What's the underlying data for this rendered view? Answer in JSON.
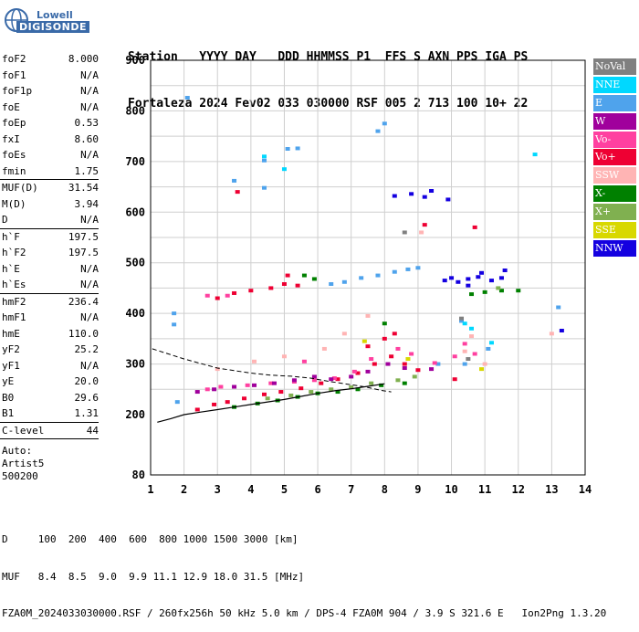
{
  "logo": {
    "line1": "Lowell",
    "line2": "DIGISONDE"
  },
  "header": {
    "line1": "Station   YYYY DAY   DDD HHMMSS P1  FFS S AXN PPS IGA PS",
    "line2": "Fortaleza 2024 Fev02 033 030000 RSF 005 2 713 100 10+ 22"
  },
  "params_groups": [
    [
      {
        "k": "foF2",
        "v": "8.000"
      },
      {
        "k": "foF1",
        "v": "N/A"
      },
      {
        "k": "foF1p",
        "v": "N/A"
      },
      {
        "k": "foE",
        "v": "N/A"
      },
      {
        "k": "foEp",
        "v": "0.53"
      },
      {
        "k": "fxI",
        "v": "8.60"
      },
      {
        "k": "foEs",
        "v": "N/A"
      },
      {
        "k": "fmin",
        "v": "1.75"
      }
    ],
    [
      {
        "k": "MUF(D)",
        "v": "31.54"
      },
      {
        "k": "M(D)",
        "v": "3.94"
      },
      {
        "k": "D",
        "v": "N/A"
      }
    ],
    [
      {
        "k": "h`F",
        "v": "197.5"
      },
      {
        "k": "h`F2",
        "v": "197.5"
      },
      {
        "k": "h`E",
        "v": "N/A"
      },
      {
        "k": "h`Es",
        "v": "N/A"
      }
    ],
    [
      {
        "k": "hmF2",
        "v": "236.4"
      },
      {
        "k": "hmF1",
        "v": "N/A"
      },
      {
        "k": "hmE",
        "v": "110.0"
      },
      {
        "k": "yF2",
        "v": "25.2"
      },
      {
        "k": "yF1",
        "v": "N/A"
      },
      {
        "k": "yE",
        "v": "20.0"
      },
      {
        "k": "B0",
        "v": "29.6"
      },
      {
        "k": "B1",
        "v": "1.31"
      }
    ],
    [
      {
        "k": "C-level",
        "v": "44"
      }
    ]
  ],
  "auto": [
    "Auto:",
    "Artist5",
    "500200"
  ],
  "legend": [
    {
      "label": "NoVal",
      "bg": "#808080",
      "fg": "#ffffff"
    },
    {
      "label": "NNE",
      "bg": "#00d8ff",
      "fg": "#ffffff"
    },
    {
      "label": "E",
      "bg": "#4fa3ec",
      "fg": "#ffffff"
    },
    {
      "label": "W",
      "bg": "#a0009c",
      "fg": "#ffffff"
    },
    {
      "label": "Vo-",
      "bg": "#ff40a0",
      "fg": "#ffffff"
    },
    {
      "label": "Vo+",
      "bg": "#ee0033",
      "fg": "#ffffff"
    },
    {
      "label": "SSW",
      "bg": "#ffb4b4",
      "fg": "#ffffff"
    },
    {
      "label": "X-",
      "bg": "#008000",
      "fg": "#ffffff"
    },
    {
      "label": "X+",
      "bg": "#80b050",
      "fg": "#ffffff"
    },
    {
      "label": "SSE",
      "bg": "#d8d800",
      "fg": "#ffffff"
    },
    {
      "label": "NNW",
      "bg": "#1400e0",
      "fg": "#ffffff"
    }
  ],
  "footer": {
    "line1": "D     100  200  400  600  800 1000 1500 3000 [km]",
    "line2": "MUF   8.4  8.5  9.0  9.9 11.1 12.9 18.0 31.5 [MHz]",
    "line3": "FZA0M_2024033030000.RSF / 260fx256h 50 kHz 5.0 km / DPS-4 FZA0M 904 / 3.9 S 321.6 E   Ion2Png 1.3.20"
  },
  "chart_data": {
    "type": "scatter",
    "x_ticks": [
      "1",
      "2",
      "3",
      "4",
      "5",
      "6",
      "7",
      "8",
      "9",
      "10",
      "11",
      "12",
      "13",
      "14"
    ],
    "y_ticks": [
      "80",
      "200",
      "300",
      "400",
      "500",
      "600",
      "700",
      "800",
      "900"
    ],
    "xlim": [
      1,
      14
    ],
    "ylim": [
      80,
      900
    ],
    "grid": true,
    "legend_placement": "right",
    "series": [
      {
        "name": "E",
        "points": [
          [
            6.8,
            462
          ],
          [
            7.3,
            470
          ],
          [
            7.8,
            475
          ],
          [
            8.3,
            482
          ],
          [
            8.7,
            487
          ],
          [
            9.0,
            490
          ],
          [
            6.4,
            458
          ],
          [
            1.8,
            225
          ],
          [
            2.1,
            826
          ],
          [
            1.7,
            400
          ],
          [
            1.7,
            378
          ],
          [
            13.2,
            412
          ],
          [
            7.8,
            760
          ],
          [
            8.0,
            775
          ],
          [
            5.1,
            725
          ],
          [
            5.4,
            726
          ],
          [
            3.5,
            662
          ],
          [
            4.4,
            648
          ],
          [
            4.4,
            702
          ],
          [
            10.3,
            385
          ],
          [
            10.4,
            300
          ],
          [
            9.6,
            300
          ],
          [
            11.1,
            330
          ]
        ]
      },
      {
        "name": "NNW",
        "points": [
          [
            9.8,
            465
          ],
          [
            10.0,
            470
          ],
          [
            10.2,
            462
          ],
          [
            10.5,
            468
          ],
          [
            10.8,
            472
          ],
          [
            11.2,
            465
          ],
          [
            11.5,
            470
          ],
          [
            8.3,
            632
          ],
          [
            8.8,
            636
          ],
          [
            9.2,
            630
          ],
          [
            9.9,
            625
          ],
          [
            9.4,
            642
          ],
          [
            10.5,
            455
          ],
          [
            10.9,
            480
          ],
          [
            11.6,
            485
          ],
          [
            13.3,
            366
          ]
        ]
      },
      {
        "name": "Vo+",
        "points": [
          [
            2.4,
            210
          ],
          [
            2.9,
            220
          ],
          [
            3.3,
            225
          ],
          [
            3.8,
            232
          ],
          [
            4.4,
            240
          ],
          [
            4.9,
            245
          ],
          [
            5.5,
            252
          ],
          [
            6.1,
            262
          ],
          [
            6.6,
            270
          ],
          [
            7.2,
            282
          ],
          [
            7.7,
            300
          ],
          [
            8.2,
            315
          ],
          [
            8.6,
            300
          ],
          [
            9.0,
            288
          ],
          [
            3.0,
            430
          ],
          [
            3.5,
            440
          ],
          [
            4.0,
            445
          ],
          [
            4.6,
            450
          ],
          [
            5.0,
            458
          ],
          [
            5.4,
            455
          ],
          [
            5.1,
            475
          ],
          [
            3.6,
            640
          ],
          [
            7.5,
            335
          ],
          [
            8.0,
            350
          ],
          [
            8.3,
            360
          ],
          [
            9.2,
            575
          ],
          [
            10.7,
            570
          ],
          [
            10.1,
            270
          ]
        ]
      },
      {
        "name": "Vo-",
        "points": [
          [
            2.7,
            250
          ],
          [
            3.1,
            255
          ],
          [
            3.9,
            258
          ],
          [
            4.6,
            262
          ],
          [
            5.3,
            265
          ],
          [
            5.9,
            268
          ],
          [
            6.5,
            272
          ],
          [
            7.1,
            285
          ],
          [
            7.6,
            310
          ],
          [
            8.4,
            330
          ],
          [
            8.8,
            320
          ],
          [
            9.5,
            302
          ],
          [
            10.1,
            315
          ],
          [
            10.4,
            340
          ],
          [
            10.7,
            320
          ],
          [
            2.7,
            435
          ],
          [
            3.3,
            435
          ],
          [
            5.6,
            305
          ]
        ]
      },
      {
        "name": "W",
        "points": [
          [
            2.4,
            245
          ],
          [
            2.9,
            250
          ],
          [
            3.5,
            255
          ],
          [
            4.1,
            258
          ],
          [
            4.7,
            262
          ],
          [
            5.3,
            268
          ],
          [
            5.9,
            275
          ],
          [
            6.4,
            270
          ],
          [
            7.0,
            275
          ],
          [
            7.5,
            285
          ],
          [
            8.1,
            300
          ],
          [
            8.6,
            292
          ],
          [
            9.4,
            290
          ]
        ]
      },
      {
        "name": "X-",
        "points": [
          [
            3.5,
            215
          ],
          [
            4.2,
            222
          ],
          [
            4.8,
            228
          ],
          [
            5.4,
            235
          ],
          [
            6.0,
            242
          ],
          [
            6.6,
            245
          ],
          [
            7.2,
            250
          ],
          [
            7.9,
            258
          ],
          [
            8.6,
            262
          ],
          [
            10.6,
            438
          ],
          [
            11.0,
            442
          ],
          [
            11.5,
            445
          ],
          [
            12.0,
            445
          ],
          [
            5.6,
            475
          ],
          [
            5.9,
            468
          ],
          [
            8.0,
            380
          ]
        ]
      },
      {
        "name": "X+",
        "points": [
          [
            4.5,
            232
          ],
          [
            5.2,
            238
          ],
          [
            5.8,
            245
          ],
          [
            6.4,
            250
          ],
          [
            7.0,
            254
          ],
          [
            7.6,
            262
          ],
          [
            8.4,
            268
          ],
          [
            8.9,
            275
          ],
          [
            11.4,
            450
          ]
        ]
      },
      {
        "name": "SSW",
        "points": [
          [
            3.0,
            290
          ],
          [
            4.1,
            305
          ],
          [
            5.0,
            315
          ],
          [
            6.2,
            330
          ],
          [
            6.8,
            360
          ],
          [
            7.5,
            395
          ],
          [
            10.4,
            325
          ],
          [
            10.6,
            355
          ],
          [
            9.1,
            560
          ],
          [
            13.0,
            360
          ],
          [
            11.0,
            300
          ]
        ]
      },
      {
        "name": "NNE",
        "points": [
          [
            10.4,
            380
          ],
          [
            10.6,
            370
          ],
          [
            11.2,
            342
          ],
          [
            12.5,
            714
          ],
          [
            4.4,
            710
          ],
          [
            5.0,
            685
          ]
        ]
      },
      {
        "name": "SSE",
        "points": [
          [
            7.4,
            345
          ],
          [
            8.7,
            310
          ],
          [
            10.9,
            290
          ]
        ]
      },
      {
        "name": "NoVal",
        "points": [
          [
            10.3,
            390
          ],
          [
            10.5,
            310
          ],
          [
            8.6,
            560
          ]
        ]
      }
    ],
    "dashed_curve": [
      [
        1.05,
        330
      ],
      [
        2.0,
        310
      ],
      [
        3.0,
        292
      ],
      [
        4.0,
        282
      ],
      [
        4.6,
        278
      ],
      [
        5.2,
        276
      ],
      [
        5.8,
        272
      ],
      [
        6.3,
        266
      ],
      [
        6.9,
        260
      ],
      [
        7.4,
        255
      ],
      [
        7.9,
        248
      ],
      [
        8.2,
        245
      ]
    ],
    "solid_curve": [
      [
        1.2,
        185
      ],
      [
        1.6,
        192
      ],
      [
        2.0,
        200
      ],
      [
        2.5,
        205
      ],
      [
        3.0,
        210
      ],
      [
        3.5,
        215
      ],
      [
        4.0,
        220
      ],
      [
        4.5,
        225
      ],
      [
        5.0,
        230
      ],
      [
        5.5,
        236
      ],
      [
        6.0,
        242
      ],
      [
        6.5,
        247
      ],
      [
        7.0,
        251
      ],
      [
        7.5,
        256
      ],
      [
        8.0,
        261
      ]
    ]
  }
}
